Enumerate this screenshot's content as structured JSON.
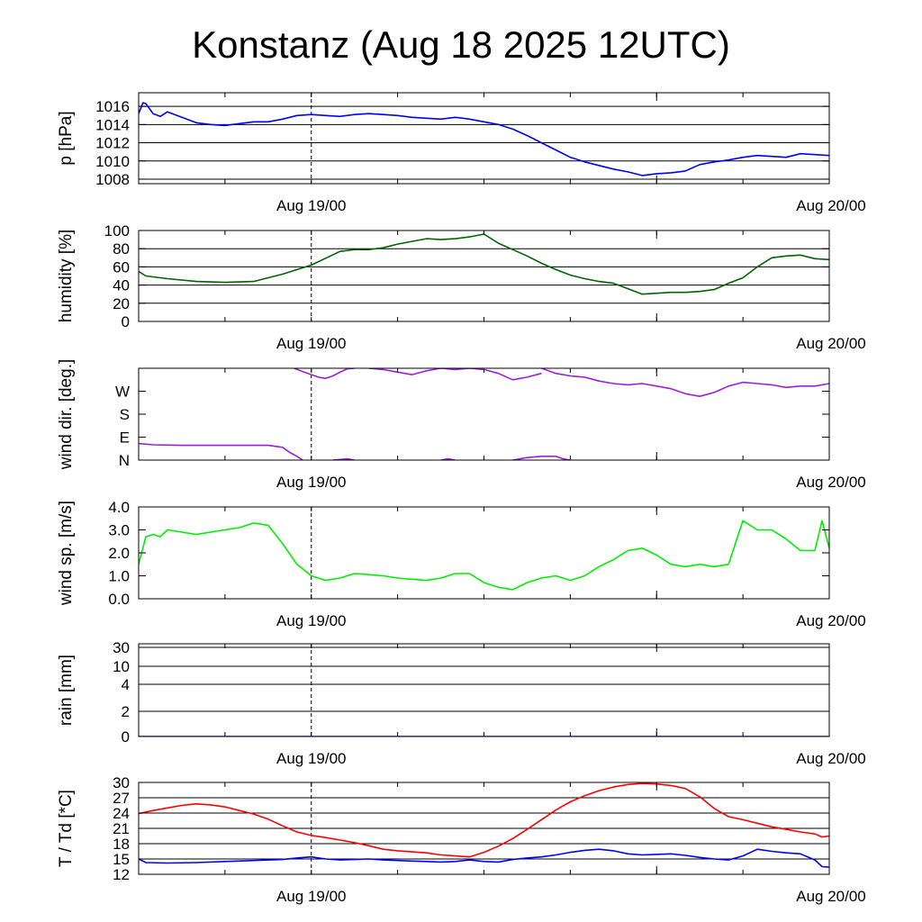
{
  "title": "Konstanz (Aug 18 2025 12UTC)",
  "x_tick_labels": [
    "Aug 19/00",
    "Aug 20/00"
  ],
  "chart_data": [
    {
      "type": "line",
      "id": "pressure",
      "ylabel": "p [hPa]",
      "ylim": [
        1007.5,
        1017.5
      ],
      "yticks": [
        1008,
        1010,
        1012,
        1014,
        1016
      ],
      "ytick_labels": [
        "1008",
        "1010",
        "1012",
        "1014",
        "1016"
      ],
      "grid": "horizontal",
      "color": "#0000ff",
      "x_unit": "hours since Aug 18 12UTC",
      "x": [
        0,
        0.3,
        0.5,
        1,
        1.5,
        2,
        3,
        4,
        5,
        6,
        7,
        8,
        9,
        10,
        11,
        12,
        13,
        14,
        15,
        16,
        17,
        18,
        19,
        20,
        21,
        22,
        23,
        24,
        25,
        26,
        27,
        28,
        29,
        30,
        31,
        32,
        33,
        34,
        35,
        36,
        37,
        38,
        39,
        40,
        41,
        42,
        43,
        44,
        45,
        46,
        47,
        48
      ],
      "values": [
        1015.2,
        1016.4,
        1016.3,
        1015.2,
        1014.9,
        1015.4,
        1014.8,
        1014.2,
        1014.0,
        1013.9,
        1014.1,
        1014.3,
        1014.3,
        1014.6,
        1015.0,
        1015.1,
        1015.0,
        1014.9,
        1015.1,
        1015.2,
        1015.1,
        1015.0,
        1014.8,
        1014.7,
        1014.6,
        1014.8,
        1014.6,
        1014.3,
        1014.0,
        1013.5,
        1012.8,
        1012.0,
        1011.2,
        1010.4,
        1009.9,
        1009.5,
        1009.1,
        1008.8,
        1008.4,
        1008.6,
        1008.7,
        1008.9,
        1009.6,
        1009.9,
        1010.1,
        1010.4,
        1010.6,
        1010.5,
        1010.4,
        1010.8,
        1010.7,
        1010.6
      ]
    },
    {
      "type": "line",
      "id": "humidity",
      "ylabel": "humidity [%]",
      "ylim": [
        0,
        100
      ],
      "yticks": [
        0,
        20,
        40,
        60,
        80,
        100
      ],
      "ytick_labels": [
        "0",
        "20",
        "40",
        "60",
        "80",
        "100"
      ],
      "grid": "horizontal",
      "color": "#006400",
      "x_unit": "hours since Aug 18 12UTC",
      "x": [
        0,
        0.5,
        2,
        4,
        6,
        8,
        9,
        10,
        12,
        14,
        15,
        16,
        17,
        18,
        19,
        20,
        21,
        22,
        23,
        24,
        25,
        26,
        27,
        28,
        29,
        30,
        31,
        32,
        33,
        34,
        35,
        36,
        37,
        38,
        39,
        40,
        41,
        42,
        43,
        44,
        45,
        46,
        47,
        48
      ],
      "values": [
        55,
        50,
        47,
        44,
        43,
        44,
        48,
        52,
        62,
        77,
        79,
        79,
        81,
        85,
        88,
        91,
        90,
        91,
        93,
        96,
        86,
        79,
        72,
        64,
        57,
        51,
        47,
        44,
        42,
        36,
        30,
        31,
        32,
        32,
        33,
        35,
        42,
        48,
        60,
        70,
        72,
        73,
        69,
        68
      ]
    },
    {
      "type": "line",
      "id": "wind_direction",
      "ylabel": "wind dir. [deg.]",
      "ylim": [
        0,
        360
      ],
      "yticks": [
        0,
        90,
        180,
        270
      ],
      "ytick_labels": [
        "N",
        "E",
        "S",
        "W"
      ],
      "grid": "none",
      "color": "#9a1fe0",
      "x_unit": "hours since Aug 18 12UTC",
      "segments": [
        {
          "x": [
            0,
            1,
            3,
            5,
            7,
            9,
            10,
            10.5,
            11,
            11.4
          ],
          "values": [
            65,
            60,
            58,
            58,
            58,
            58,
            50,
            30,
            15,
            0
          ]
        },
        {
          "x": [
            10.8,
            11.5,
            12,
            12.5,
            13,
            13.5,
            14,
            14.5,
            15
          ],
          "values": [
            360,
            345,
            335,
            325,
            320,
            330,
            345,
            358,
            360
          ]
        },
        {
          "x": [
            13.5,
            14.5,
            15
          ],
          "values": [
            0,
            5,
            0
          ]
        },
        {
          "x": [
            16,
            17,
            18,
            19,
            20,
            21,
            22,
            23,
            24,
            25,
            26,
            27,
            28
          ],
          "values": [
            360,
            355,
            345,
            335,
            350,
            360,
            355,
            360,
            355,
            340,
            315,
            325,
            340
          ]
        },
        {
          "x": [
            21,
            21.5,
            22
          ],
          "values": [
            0,
            5,
            0
          ]
        },
        {
          "x": [
            26,
            27,
            28,
            29,
            29.5,
            30
          ],
          "values": [
            0,
            10,
            15,
            15,
            5,
            0
          ]
        },
        {
          "x": [
            28,
            29,
            30,
            31,
            32,
            33,
            34,
            35,
            36,
            37,
            38,
            39,
            40,
            41,
            42,
            43,
            44,
            45,
            46,
            47,
            48
          ],
          "values": [
            360,
            340,
            330,
            325,
            310,
            300,
            295,
            300,
            290,
            280,
            260,
            250,
            265,
            290,
            305,
            300,
            295,
            285,
            290,
            290,
            300
          ]
        }
      ]
    },
    {
      "type": "line",
      "id": "wind_speed",
      "ylabel": "wind sp. [m/s]",
      "ylim": [
        0,
        4
      ],
      "yticks": [
        0,
        1,
        2,
        3,
        4
      ],
      "ytick_labels": [
        "0.0",
        "1.0",
        "2.0",
        "3.0",
        "4.0"
      ],
      "grid": "none",
      "color": "#00ee00",
      "x_unit": "hours since Aug 18 12UTC",
      "x": [
        0,
        0.5,
        1,
        1.5,
        2,
        3,
        4,
        5,
        6,
        7,
        8,
        9,
        10,
        11,
        12,
        13,
        14,
        15,
        16,
        17,
        18,
        19,
        20,
        21,
        22,
        23,
        24,
        25,
        26,
        27,
        28,
        29,
        30,
        31,
        32,
        33,
        34,
        35,
        36,
        37,
        38,
        39,
        40,
        41,
        42,
        43,
        44,
        45,
        46,
        47,
        47.5,
        48
      ],
      "values": [
        1.5,
        2.7,
        2.8,
        2.7,
        3.0,
        2.9,
        2.8,
        2.9,
        3.0,
        3.1,
        3.3,
        3.2,
        2.4,
        1.5,
        1.0,
        0.8,
        0.9,
        1.1,
        1.05,
        1.0,
        0.9,
        0.85,
        0.8,
        0.9,
        1.1,
        1.1,
        0.7,
        0.5,
        0.4,
        0.7,
        0.9,
        1.0,
        0.8,
        1.0,
        1.4,
        1.7,
        2.1,
        2.2,
        1.9,
        1.5,
        1.4,
        1.5,
        1.4,
        1.5,
        3.4,
        3.0,
        3.0,
        2.6,
        2.1,
        2.1,
        3.4,
        2.2
      ]
    },
    {
      "type": "line",
      "id": "rain",
      "ylabel": "rain [mm]",
      "ylim": [
        0,
        30
      ],
      "yticks": [
        0,
        2,
        4,
        10,
        30
      ],
      "ytick_labels": [
        "0",
        "2",
        "4",
        "10",
        "30"
      ],
      "grid": "horizontal",
      "color": "#0000ff",
      "x_unit": "hours since Aug 18 12UTC",
      "x": [
        0,
        48
      ],
      "values": [
        0,
        0
      ]
    },
    {
      "type": "line",
      "id": "temperature",
      "ylabel": "T / Td [*C]",
      "ylim": [
        12,
        30
      ],
      "yticks": [
        12,
        15,
        18,
        21,
        24,
        27,
        30
      ],
      "ytick_labels": [
        "12",
        "15",
        "18",
        "21",
        "24",
        "27",
        "30"
      ],
      "grid": "horizontal",
      "x_unit": "hours since Aug 18 12UTC",
      "series": [
        {
          "id": "T",
          "color": "#ff0000",
          "x": [
            0,
            1,
            2,
            3,
            4,
            5,
            6,
            7,
            8,
            9,
            10,
            11,
            12,
            13,
            14,
            15,
            16,
            17,
            18,
            19,
            20,
            21,
            22,
            23,
            24,
            25,
            26,
            27,
            28,
            29,
            30,
            31,
            32,
            33,
            34,
            35,
            36,
            37,
            38,
            39,
            40,
            41,
            42,
            43,
            44,
            45,
            46,
            47,
            47.5,
            48
          ],
          "values": [
            23.9,
            24.5,
            25.0,
            25.5,
            25.8,
            25.6,
            25.2,
            24.5,
            23.8,
            22.8,
            21.5,
            20.3,
            19.6,
            19.2,
            18.7,
            18.2,
            17.6,
            16.9,
            16.6,
            16.4,
            16.2,
            15.8,
            15.6,
            15.4,
            16.3,
            17.5,
            19.0,
            20.8,
            22.7,
            24.6,
            26.2,
            27.4,
            28.4,
            29.1,
            29.6,
            29.8,
            29.7,
            29.4,
            28.8,
            27.2,
            24.9,
            23.3,
            22.7,
            22.0,
            21.3,
            20.8,
            20.3,
            19.9,
            19.3,
            19.5
          ]
        },
        {
          "id": "Td",
          "color": "#0000ff",
          "x": [
            0,
            0.5,
            2,
            4,
            6,
            8,
            10,
            11,
            12,
            13,
            14,
            15,
            16,
            17,
            18,
            19,
            20,
            21,
            22,
            23,
            24,
            25,
            26,
            27,
            28,
            29,
            30,
            31,
            32,
            33,
            34,
            35,
            36,
            37,
            38,
            39,
            40,
            41,
            42,
            43,
            44,
            45,
            46,
            47,
            47.5,
            48
          ],
          "values": [
            15.0,
            14.3,
            14.2,
            14.3,
            14.5,
            14.7,
            14.9,
            15.2,
            15.4,
            15.0,
            14.8,
            14.9,
            15.0,
            14.8,
            14.7,
            14.6,
            14.5,
            14.4,
            14.5,
            14.8,
            14.5,
            14.4,
            14.9,
            15.2,
            15.4,
            15.8,
            16.3,
            16.7,
            16.9,
            16.6,
            16.0,
            15.8,
            15.9,
            16.0,
            15.7,
            15.3,
            15.0,
            14.8,
            15.6,
            16.9,
            16.5,
            16.2,
            16.0,
            14.8,
            13.5,
            13.4
          ]
        }
      ]
    }
  ]
}
